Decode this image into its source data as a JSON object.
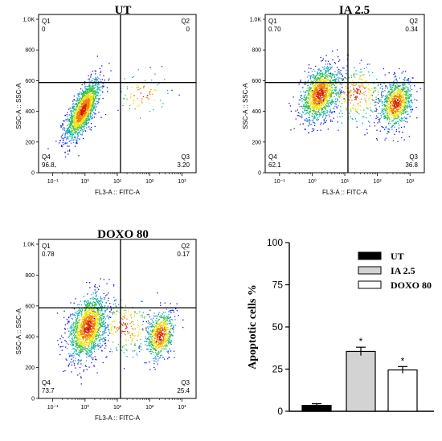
{
  "chart_data": [
    {
      "type": "scatter",
      "title": "UT",
      "xlabel": "FL3-A :: FITC-A",
      "ylabel": "SSC-A :: SSC-A",
      "x_ticks": [
        "10⁻¹",
        "10⁰",
        "10¹",
        "10²",
        "10³"
      ],
      "y_ticks": [
        "0",
        "200",
        "400",
        "600",
        "800",
        "1.0K"
      ],
      "quadrants": [
        {
          "name": "Q1",
          "value": "0"
        },
        {
          "name": "Q2",
          "value": "0"
        },
        {
          "name": "Q3",
          "value": "3.20"
        },
        {
          "name": "Q4",
          "value": "96.8"
        }
      ]
    },
    {
      "type": "scatter",
      "title": "IA 2.5",
      "xlabel": "FL3-A :: FITC-A",
      "ylabel": "SSC-A :: SSC-A",
      "x_ticks": [
        "10⁻¹",
        "10⁰",
        "10¹",
        "10²",
        "10³"
      ],
      "y_ticks": [
        "0",
        "200",
        "400",
        "600",
        "800",
        "1.0K"
      ],
      "quadrants": [
        {
          "name": "Q1",
          "value": "0.70"
        },
        {
          "name": "Q2",
          "value": "0.34"
        },
        {
          "name": "Q3",
          "value": "36.8"
        },
        {
          "name": "Q4",
          "value": "62.1"
        }
      ]
    },
    {
      "type": "scatter",
      "title": "DOXO 80",
      "xlabel": "FL3-A :: FITC-A",
      "ylabel": "SSC-A :: SSC-A",
      "x_ticks": [
        "10⁻¹",
        "10⁰",
        "10¹",
        "10²",
        "10³"
      ],
      "y_ticks": [
        "0",
        "200",
        "400",
        "600",
        "800",
        "1.0K"
      ],
      "quadrants": [
        {
          "name": "Q1",
          "value": "0.78"
        },
        {
          "name": "Q2",
          "value": "0.17"
        },
        {
          "name": "Q3",
          "value": "25.4"
        },
        {
          "name": "Q4",
          "value": "73.7"
        }
      ]
    },
    {
      "type": "bar",
      "ylabel": "Apoptotic cells %",
      "ylim": [
        0,
        100
      ],
      "y_ticks": [
        "0",
        "25",
        "50",
        "75",
        "100"
      ],
      "categories": [
        "UT",
        "IA 2.5",
        "DOXO 80"
      ],
      "values": [
        3.5,
        35.5,
        24.5
      ],
      "errors": [
        1.0,
        2.5,
        2.0
      ],
      "significance": [
        "",
        "*",
        "*"
      ],
      "colors": [
        "#000000",
        "#d3d3d3",
        "#ffffff"
      ],
      "legend_position": "top-right"
    }
  ]
}
